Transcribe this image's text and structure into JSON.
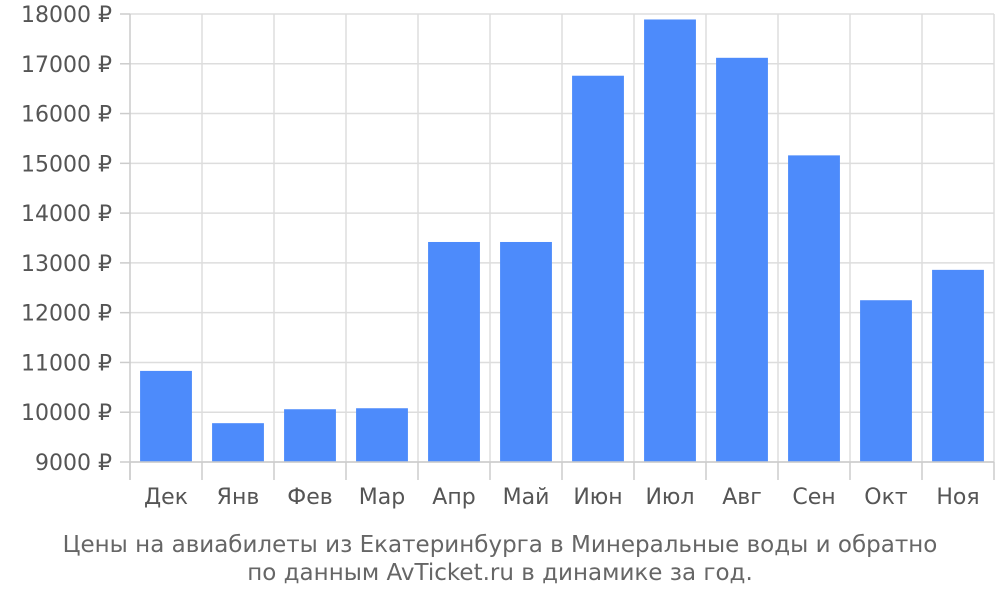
{
  "chart_data": {
    "type": "bar",
    "categories": [
      "Дек",
      "Янв",
      "Фев",
      "Мар",
      "Апр",
      "Май",
      "Июн",
      "Июл",
      "Авг",
      "Сен",
      "Окт",
      "Ноя"
    ],
    "values": [
      10830,
      9780,
      10060,
      10080,
      13420,
      13420,
      16760,
      17890,
      17120,
      15160,
      12250,
      12860
    ],
    "ylim": [
      9000,
      18000
    ],
    "y_ticks": [
      "9000 ₽",
      "10000 ₽",
      "11000 ₽",
      "12000 ₽",
      "13000 ₽",
      "14000 ₽",
      "15000 ₽",
      "16000 ₽",
      "17000 ₽",
      "18000 ₽"
    ],
    "grid": true,
    "bar_color": "#4d8bfb",
    "caption_line1": "Цены на авиабилеты из Екатеринбурга в Минеральные воды и обратно",
    "caption_line2": "по данным AvTicket.ru в динамике за год."
  }
}
